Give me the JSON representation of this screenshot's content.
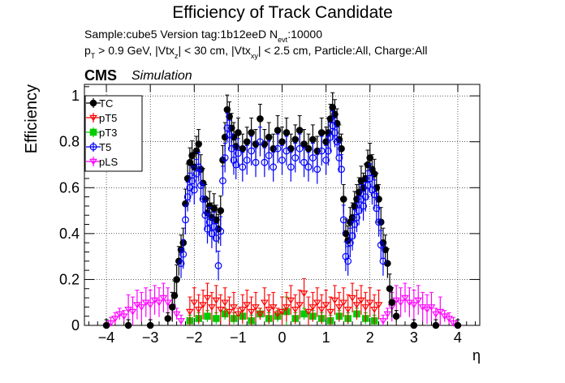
{
  "title": "Efficiency of Track Candidate",
  "info": {
    "line1_prefix": "Sample:cube5   Version tag:1b12eeD  N",
    "line1_sub": "evt",
    "line1_suffix": ":10000",
    "line2": {
      "p": "p",
      "p_sub": "T",
      "a": " > 0.9 GeV, |Vtx",
      "z_sub": "z",
      "b": "| < 30 cm, |Vtx",
      "xy_sub": "xy",
      "c": "| < 2.5 cm, Particle:All, Charge:All"
    }
  },
  "cms_label": "CMS",
  "simulation_label": "Simulation",
  "chart_data": {
    "type": "scatter",
    "title": "Efficiency of Track Candidate",
    "xlabel": "η",
    "ylabel": "Efficiency",
    "xlim": [
      -4.5,
      4.5
    ],
    "ylim": [
      0,
      1.05
    ],
    "xticks": [
      -4,
      -3,
      -2,
      -1,
      0,
      1,
      2,
      3,
      4
    ],
    "xtick_labels": [
      "−4",
      "−3",
      "−2",
      "−1",
      "0",
      "1",
      "2",
      "3",
      "4"
    ],
    "yticks": [
      0,
      0.2,
      0.4,
      0.6,
      0.8,
      1
    ],
    "ytick_labels": [
      "0",
      "0.2",
      "0.4",
      "0.6",
      "0.8",
      "1"
    ],
    "grid": true,
    "legend_position": "top-left",
    "series": [
      {
        "name": "TC",
        "color": "#000000",
        "marker": "filled-circle",
        "points": [
          [
            -4.0,
            0.0
          ],
          [
            -3.5,
            0.0
          ],
          [
            -3.0,
            0.0
          ],
          [
            -2.6,
            0.03
          ],
          [
            -2.5,
            0.08
          ],
          [
            -2.45,
            0.13
          ],
          [
            -2.4,
            0.2
          ],
          [
            -2.35,
            0.28
          ],
          [
            -2.3,
            0.33
          ],
          [
            -2.25,
            0.36
          ],
          [
            -2.2,
            0.53
          ],
          [
            -2.15,
            0.64
          ],
          [
            -2.1,
            0.71
          ],
          [
            -2.05,
            0.74
          ],
          [
            -2.0,
            0.69
          ],
          [
            -1.95,
            0.76
          ],
          [
            -1.9,
            0.79
          ],
          [
            -1.85,
            0.68
          ],
          [
            -1.8,
            0.62
          ],
          [
            -1.75,
            0.55
          ],
          [
            -1.7,
            0.49
          ],
          [
            -1.65,
            0.52
          ],
          [
            -1.6,
            0.47
          ],
          [
            -1.55,
            0.51
          ],
          [
            -1.5,
            0.46
          ],
          [
            -1.45,
            0.42
          ],
          [
            -1.4,
            0.5
          ],
          [
            -1.35,
            0.72
          ],
          [
            -1.3,
            0.82
          ],
          [
            -1.25,
            0.94
          ],
          [
            -1.2,
            0.91
          ],
          [
            -1.15,
            0.86
          ],
          [
            -1.1,
            0.82
          ],
          [
            -1.05,
            0.78
          ],
          [
            -1.0,
            0.84
          ],
          [
            -0.9,
            0.77
          ],
          [
            -0.8,
            0.8
          ],
          [
            -0.7,
            0.84
          ],
          [
            -0.6,
            0.79
          ],
          [
            -0.5,
            0.9
          ],
          [
            -0.4,
            0.79
          ],
          [
            -0.3,
            0.82
          ],
          [
            -0.2,
            0.77
          ],
          [
            -0.1,
            0.85
          ],
          [
            0.0,
            0.8
          ],
          [
            0.1,
            0.84
          ],
          [
            0.2,
            0.77
          ],
          [
            0.3,
            0.81
          ],
          [
            0.4,
            0.85
          ],
          [
            0.5,
            0.79
          ],
          [
            0.6,
            0.77
          ],
          [
            0.7,
            0.81
          ],
          [
            0.8,
            0.76
          ],
          [
            0.9,
            0.84
          ],
          [
            1.0,
            0.8
          ],
          [
            1.05,
            0.84
          ],
          [
            1.1,
            0.9
          ],
          [
            1.15,
            0.95
          ],
          [
            1.2,
            0.92
          ],
          [
            1.25,
            0.88
          ],
          [
            1.3,
            0.81
          ],
          [
            1.35,
            0.77
          ],
          [
            1.4,
            0.55
          ],
          [
            1.45,
            0.4
          ],
          [
            1.5,
            0.37
          ],
          [
            1.55,
            0.45
          ],
          [
            1.6,
            0.47
          ],
          [
            1.65,
            0.52
          ],
          [
            1.7,
            0.55
          ],
          [
            1.75,
            0.58
          ],
          [
            1.8,
            0.63
          ],
          [
            1.85,
            0.6
          ],
          [
            1.9,
            0.64
          ],
          [
            1.95,
            0.7
          ],
          [
            2.0,
            0.73
          ],
          [
            2.05,
            0.68
          ],
          [
            2.1,
            0.66
          ],
          [
            2.15,
            0.6
          ],
          [
            2.2,
            0.55
          ],
          [
            2.25,
            0.45
          ],
          [
            2.3,
            0.36
          ],
          [
            2.35,
            0.33
          ],
          [
            2.4,
            0.27
          ],
          [
            2.45,
            0.16
          ],
          [
            2.5,
            0.1
          ],
          [
            2.6,
            0.04
          ],
          [
            3.0,
            0.0
          ],
          [
            3.5,
            0.0
          ],
          [
            4.0,
            0.0
          ]
        ]
      },
      {
        "name": "pT5",
        "color": "#ff0000",
        "marker": "open-triangle-down",
        "points": [
          [
            -2.1,
            0.06
          ],
          [
            -2.0,
            0.1
          ],
          [
            -1.9,
            0.07
          ],
          [
            -1.8,
            0.09
          ],
          [
            -1.7,
            0.12
          ],
          [
            -1.6,
            0.08
          ],
          [
            -1.5,
            0.11
          ],
          [
            -1.4,
            0.07
          ],
          [
            -1.3,
            0.1
          ],
          [
            -1.2,
            0.06
          ],
          [
            -1.1,
            0.08
          ],
          [
            -1.0,
            0.05
          ],
          [
            -0.9,
            0.07
          ],
          [
            -0.8,
            0.09
          ],
          [
            -0.7,
            0.06
          ],
          [
            -0.6,
            0.08
          ],
          [
            -0.5,
            0.05
          ],
          [
            -0.4,
            0.1
          ],
          [
            -0.3,
            0.07
          ],
          [
            -0.2,
            0.08
          ],
          [
            -0.1,
            0.05
          ],
          [
            0.0,
            0.06
          ],
          [
            0.1,
            0.08
          ],
          [
            0.2,
            0.11
          ],
          [
            0.3,
            0.07
          ],
          [
            0.4,
            0.09
          ],
          [
            0.5,
            0.14
          ],
          [
            0.6,
            0.06
          ],
          [
            0.7,
            0.08
          ],
          [
            0.8,
            0.1
          ],
          [
            0.9,
            0.07
          ],
          [
            1.0,
            0.09
          ],
          [
            1.1,
            0.06
          ],
          [
            1.2,
            0.11
          ],
          [
            1.3,
            0.08
          ],
          [
            1.4,
            0.1
          ],
          [
            1.5,
            0.07
          ],
          [
            1.6,
            0.12
          ],
          [
            1.7,
            0.09
          ],
          [
            1.8,
            0.11
          ],
          [
            1.9,
            0.08
          ],
          [
            2.0,
            0.1
          ],
          [
            2.1,
            0.07
          ],
          [
            2.2,
            0.09
          ]
        ]
      },
      {
        "name": "pT3",
        "color": "#00cc00",
        "marker": "filled-square",
        "points": [
          [
            -2.1,
            0.02
          ],
          [
            -1.9,
            0.03
          ],
          [
            -1.7,
            0.04
          ],
          [
            -1.5,
            0.03
          ],
          [
            -1.3,
            0.05
          ],
          [
            -1.1,
            0.03
          ],
          [
            -0.9,
            0.04
          ],
          [
            -0.7,
            0.02
          ],
          [
            -0.5,
            0.05
          ],
          [
            -0.3,
            0.03
          ],
          [
            -0.1,
            0.04
          ],
          [
            0.1,
            0.06
          ],
          [
            0.3,
            0.03
          ],
          [
            0.5,
            0.05
          ],
          [
            0.7,
            0.04
          ],
          [
            0.9,
            0.03
          ],
          [
            1.1,
            0.02
          ],
          [
            1.3,
            0.04
          ],
          [
            1.5,
            0.03
          ],
          [
            1.7,
            0.05
          ],
          [
            1.9,
            0.03
          ],
          [
            2.1,
            0.02
          ]
        ]
      },
      {
        "name": "T5",
        "color": "#0000ff",
        "marker": "open-circle",
        "points": [
          [
            -2.3,
            0.27
          ],
          [
            -2.25,
            0.31
          ],
          [
            -2.2,
            0.46
          ],
          [
            -2.15,
            0.56
          ],
          [
            -2.1,
            0.6
          ],
          [
            -2.05,
            0.63
          ],
          [
            -2.0,
            0.59
          ],
          [
            -1.95,
            0.66
          ],
          [
            -1.9,
            0.69
          ],
          [
            -1.85,
            0.61
          ],
          [
            -1.8,
            0.55
          ],
          [
            -1.75,
            0.48
          ],
          [
            -1.7,
            0.42
          ],
          [
            -1.65,
            0.45
          ],
          [
            -1.6,
            0.4
          ],
          [
            -1.55,
            0.43
          ],
          [
            -1.5,
            0.38
          ],
          [
            -1.45,
            0.26
          ],
          [
            -1.4,
            0.41
          ],
          [
            -1.35,
            0.63
          ],
          [
            -1.3,
            0.73
          ],
          [
            -1.25,
            0.86
          ],
          [
            -1.2,
            0.83
          ],
          [
            -1.15,
            0.77
          ],
          [
            -1.1,
            0.72
          ],
          [
            -1.05,
            0.7
          ],
          [
            -1.0,
            0.75
          ],
          [
            -0.9,
            0.69
          ],
          [
            -0.8,
            0.72
          ],
          [
            -0.7,
            0.76
          ],
          [
            -0.6,
            0.71
          ],
          [
            -0.5,
            0.8
          ],
          [
            -0.4,
            0.71
          ],
          [
            -0.3,
            0.74
          ],
          [
            -0.2,
            0.69
          ],
          [
            -0.1,
            0.77
          ],
          [
            0.0,
            0.72
          ],
          [
            0.1,
            0.76
          ],
          [
            0.2,
            0.69
          ],
          [
            0.3,
            0.73
          ],
          [
            0.4,
            0.77
          ],
          [
            0.5,
            0.71
          ],
          [
            0.6,
            0.69
          ],
          [
            0.7,
            0.73
          ],
          [
            0.8,
            0.68
          ],
          [
            0.9,
            0.76
          ],
          [
            1.0,
            0.72
          ],
          [
            1.05,
            0.76
          ],
          [
            1.1,
            0.82
          ],
          [
            1.15,
            0.87
          ],
          [
            1.2,
            0.84
          ],
          [
            1.25,
            0.8
          ],
          [
            1.3,
            0.73
          ],
          [
            1.35,
            0.68
          ],
          [
            1.4,
            0.46
          ],
          [
            1.45,
            0.3
          ],
          [
            1.5,
            0.28
          ],
          [
            1.55,
            0.36
          ],
          [
            1.6,
            0.39
          ],
          [
            1.65,
            0.44
          ],
          [
            1.7,
            0.47
          ],
          [
            1.75,
            0.5
          ],
          [
            1.8,
            0.55
          ],
          [
            1.85,
            0.52
          ],
          [
            1.9,
            0.56
          ],
          [
            1.95,
            0.61
          ],
          [
            2.0,
            0.64
          ],
          [
            2.05,
            0.59
          ],
          [
            2.1,
            0.57
          ],
          [
            2.15,
            0.51
          ],
          [
            2.2,
            0.45
          ],
          [
            2.25,
            0.35
          ],
          [
            2.3,
            0.28
          ]
        ]
      },
      {
        "name": "pLS",
        "color": "#ff00ff",
        "marker": "open-triangle-down",
        "points": [
          [
            -3.9,
            0.01
          ],
          [
            -3.8,
            0.03
          ],
          [
            -3.7,
            0.05
          ],
          [
            -3.6,
            0.04
          ],
          [
            -3.5,
            0.07
          ],
          [
            -3.4,
            0.06
          ],
          [
            -3.3,
            0.09
          ],
          [
            -3.2,
            0.08
          ],
          [
            -3.1,
            0.1
          ],
          [
            -3.0,
            0.09
          ],
          [
            -2.9,
            0.11
          ],
          [
            -2.8,
            0.1
          ],
          [
            -2.7,
            0.12
          ],
          [
            -2.6,
            0.1
          ],
          [
            -2.5,
            0.08
          ],
          [
            -2.4,
            0.05
          ],
          [
            -2.3,
            0.02
          ],
          [
            2.3,
            0.02
          ],
          [
            2.4,
            0.05
          ],
          [
            2.5,
            0.08
          ],
          [
            2.6,
            0.11
          ],
          [
            2.7,
            0.1
          ],
          [
            2.8,
            0.12
          ],
          [
            2.9,
            0.1
          ],
          [
            3.0,
            0.09
          ],
          [
            3.1,
            0.11
          ],
          [
            3.2,
            0.08
          ],
          [
            3.3,
            0.07
          ],
          [
            3.4,
            0.08
          ],
          [
            3.5,
            0.05
          ],
          [
            3.6,
            0.06
          ],
          [
            3.7,
            0.04
          ],
          [
            3.8,
            0.03
          ],
          [
            3.9,
            0.01
          ]
        ]
      }
    ]
  }
}
